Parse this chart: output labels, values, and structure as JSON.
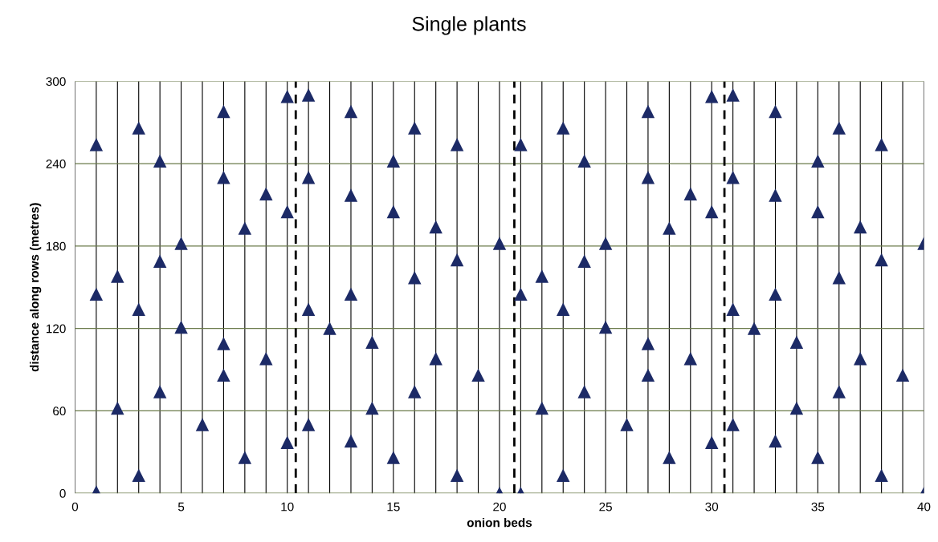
{
  "chart_data": {
    "type": "scatter",
    "title": "Single plants",
    "xlabel": "onion beds",
    "ylabel": "distance along rows (metres)",
    "x": [
      1,
      1,
      1,
      2,
      2,
      3,
      3,
      3,
      4,
      4,
      4,
      5,
      5,
      6,
      7,
      7,
      7,
      7,
      8,
      8,
      9,
      9,
      10,
      10,
      10,
      11,
      11,
      11,
      11,
      12,
      13,
      13,
      13,
      13,
      14,
      14,
      15,
      15,
      15,
      16,
      16,
      16,
      17,
      17,
      18,
      18,
      18,
      19,
      20,
      20,
      21,
      21,
      21,
      22,
      22,
      23,
      23,
      23,
      24,
      24,
      24,
      25,
      25,
      26,
      27,
      27,
      27,
      27,
      28,
      28,
      29,
      29,
      30,
      30,
      30,
      31,
      31,
      31,
      31,
      32,
      33,
      33,
      33,
      33,
      34,
      34,
      35,
      35,
      35,
      36,
      36,
      36,
      37,
      37,
      38,
      38,
      38,
      39,
      40,
      40
    ],
    "series": [
      {
        "color": "#1c2a66",
        "values": [
          254,
          145,
          1,
          158,
          62,
          266,
          134,
          13,
          242,
          169,
          74,
          182,
          121,
          50,
          278,
          230,
          109,
          86,
          193,
          26,
          218,
          98,
          289,
          205,
          37,
          290,
          230,
          134,
          50,
          120,
          278,
          217,
          145,
          38,
          110,
          62,
          242,
          205,
          26,
          266,
          157,
          74,
          194,
          98,
          254,
          170,
          13,
          86,
          182,
          0,
          254,
          145,
          0,
          158,
          62,
          266,
          134,
          13,
          242,
          169,
          74,
          182,
          121,
          50,
          278,
          230,
          109,
          86,
          193,
          26,
          218,
          98,
          289,
          205,
          37,
          290,
          230,
          134,
          50,
          120,
          278,
          217,
          145,
          38,
          110,
          62,
          242,
          205,
          26,
          266,
          157,
          74,
          194,
          98,
          254,
          170,
          13,
          86,
          182,
          0
        ]
      }
    ],
    "marker": "triangle",
    "grid": true,
    "xlim": [
      0,
      40
    ],
    "xticks": [
      0,
      {
        "value": 1,
        "label": null
      },
      {
        "value": 2,
        "label": null
      },
      {
        "value": 3,
        "label": null
      },
      {
        "value": 4,
        "label": null
      },
      5,
      {
        "value": 6,
        "label": null
      },
      {
        "value": 7,
        "label": null
      },
      {
        "value": 8,
        "label": null
      },
      {
        "value": 9,
        "label": null
      },
      10,
      {
        "value": 11,
        "label": null
      },
      {
        "value": 12,
        "label": null
      },
      {
        "value": 13,
        "label": null
      },
      {
        "value": 14,
        "label": null
      },
      15,
      {
        "value": 16,
        "label": null
      },
      {
        "value": 17,
        "label": null
      },
      {
        "value": 18,
        "label": null
      },
      {
        "value": 19,
        "label": null
      },
      20,
      {
        "value": 21,
        "label": null
      },
      {
        "value": 22,
        "label": null
      },
      {
        "value": 23,
        "label": null
      },
      {
        "value": 24,
        "label": null
      },
      25,
      {
        "value": 26,
        "label": null
      },
      {
        "value": 27,
        "label": null
      },
      {
        "value": 28,
        "label": null
      },
      {
        "value": 29,
        "label": null
      },
      30,
      {
        "value": 31,
        "label": null
      },
      {
        "value": 32,
        "label": null
      },
      {
        "value": 33,
        "label": null
      },
      {
        "value": 34,
        "label": null
      },
      35,
      {
        "value": 36,
        "label": null
      },
      {
        "value": 37,
        "label": null
      },
      {
        "value": 38,
        "label": null
      },
      {
        "value": 39,
        "label": null
      },
      40
    ],
    "ylim": [
      0,
      300
    ],
    "yticks": [
      0,
      60,
      120,
      180,
      240,
      300
    ],
    "ref_lines": [
      {
        "axis": "x",
        "value": 10.4,
        "line_style": "dashed",
        "color": "#000000"
      },
      {
        "axis": "x",
        "value": 20.7,
        "line_style": "dashed",
        "color": "#000000"
      },
      {
        "axis": "x",
        "value": 30.6,
        "line_style": "dashed",
        "color": "#000000"
      }
    ]
  }
}
